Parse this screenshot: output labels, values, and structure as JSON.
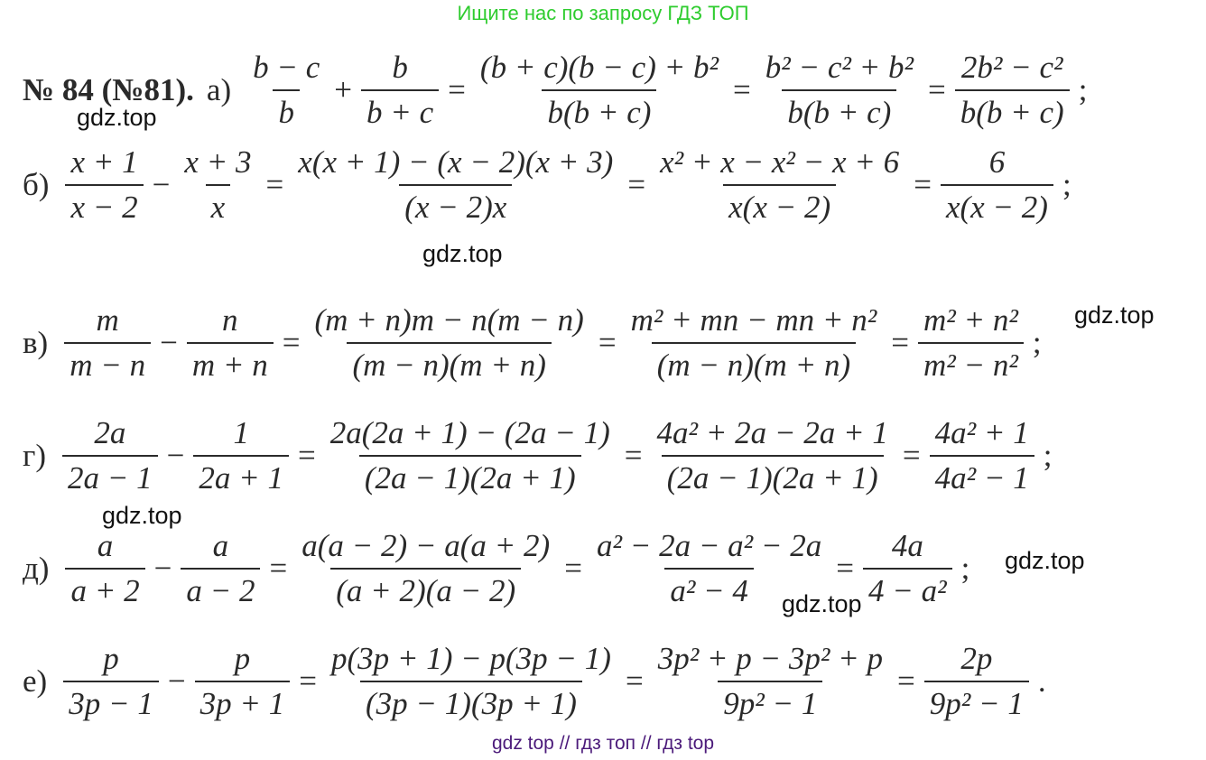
{
  "top_banner": "Ищите нас по запросу ГДЗ ТОП",
  "bottom_banner": "gdz top  //  гдз топ  //  гдз top",
  "problem": {
    "rows": [
      {
        "label": "№ 84 (№81).",
        "sub": "а)",
        "tokens": [
          {
            "n": "b − c",
            "d": "b"
          },
          {
            "op": "+"
          },
          {
            "n": "b",
            "d": "b + c"
          },
          {
            "op": "="
          },
          {
            "n": "(b + c)(b − c) + b²",
            "d": "b(b + c)"
          },
          {
            "op": "="
          },
          {
            "n": "b² − c² + b²",
            "d": "b(b + c)"
          },
          {
            "op": "="
          },
          {
            "n": "2b² − c²",
            "d": "b(b + c)"
          },
          {
            "op": ";"
          }
        ]
      },
      {
        "label": "",
        "sub": "б)",
        "tokens": [
          {
            "n": "x + 1",
            "d": "x − 2"
          },
          {
            "op": "−"
          },
          {
            "n": "x + 3",
            "d": "x"
          },
          {
            "op": "="
          },
          {
            "n": "x(x + 1) − (x − 2)(x + 3)",
            "d": "(x − 2)x"
          },
          {
            "op": "="
          },
          {
            "n": "x² + x − x² − x + 6",
            "d": "x(x − 2)"
          },
          {
            "op": "="
          },
          {
            "n": "6",
            "d": "x(x − 2)"
          },
          {
            "op": ";"
          }
        ]
      },
      {
        "label": "",
        "sub": "в)",
        "tokens": [
          {
            "n": "m",
            "d": "m − n"
          },
          {
            "op": "−"
          },
          {
            "n": "n",
            "d": "m + n"
          },
          {
            "op": "="
          },
          {
            "n": "(m + n)m − n(m − n)",
            "d": "(m − n)(m + n)"
          },
          {
            "op": "="
          },
          {
            "n": "m² + mn − mn + n²",
            "d": "(m − n)(m + n)"
          },
          {
            "op": "="
          },
          {
            "n": "m² + n²",
            "d": "m² − n²"
          },
          {
            "op": ";"
          }
        ]
      },
      {
        "label": "",
        "sub": "г)",
        "tokens": [
          {
            "n": "2a",
            "d": "2a − 1"
          },
          {
            "op": "−"
          },
          {
            "n": "1",
            "d": "2a + 1"
          },
          {
            "op": "="
          },
          {
            "n": "2a(2a + 1) − (2a − 1)",
            "d": "(2a − 1)(2a + 1)"
          },
          {
            "op": "="
          },
          {
            "n": "4a² + 2a − 2a + 1",
            "d": "(2a − 1)(2a + 1)"
          },
          {
            "op": "="
          },
          {
            "n": "4a² + 1",
            "d": "4a² − 1"
          },
          {
            "op": ";"
          }
        ]
      },
      {
        "label": "",
        "sub": "д)",
        "tokens": [
          {
            "n": "a",
            "d": "a + 2"
          },
          {
            "op": "−"
          },
          {
            "n": "a",
            "d": "a − 2"
          },
          {
            "op": "="
          },
          {
            "n": "a(a − 2) − a(a + 2)",
            "d": "(a + 2)(a − 2)"
          },
          {
            "op": "="
          },
          {
            "n": "a² − 2a − a² − 2a",
            "d": "a² − 4"
          },
          {
            "op": "="
          },
          {
            "n": "4a",
            "d": "4 − a²"
          },
          {
            "op": ";"
          }
        ]
      },
      {
        "label": "",
        "sub": "е)",
        "tokens": [
          {
            "n": "p",
            "d": "3p − 1"
          },
          {
            "op": "−"
          },
          {
            "n": "p",
            "d": "3p + 1"
          },
          {
            "op": "="
          },
          {
            "n": "p(3p + 1) − p(3p − 1)",
            "d": "(3p − 1)(3p + 1)"
          },
          {
            "op": "="
          },
          {
            "n": "3p² + p − 3p² + p",
            "d": "9p² − 1"
          },
          {
            "op": "="
          },
          {
            "n": "2p",
            "d": "9p² − 1"
          },
          {
            "op": "."
          }
        ]
      }
    ]
  },
  "watermarks": [
    "gdz.top",
    "gdz.top",
    "gdz.top",
    "gdz.top",
    "gdz.top",
    "gdz.top"
  ]
}
